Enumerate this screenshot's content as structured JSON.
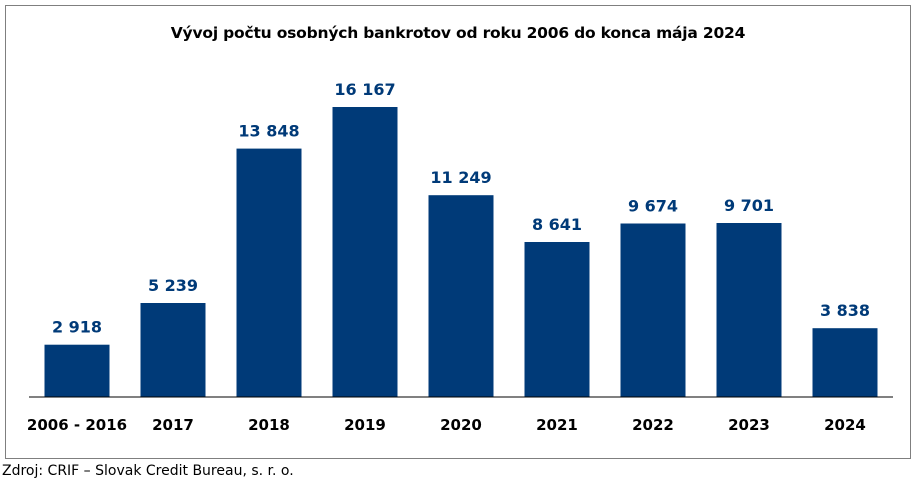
{
  "chart_data": {
    "type": "bar",
    "title": "Vývoj počtu osobných bankrotov od roku 2006 do konca mája 2024",
    "xlabel": "",
    "ylabel": "",
    "categories": [
      "2006 - 2016",
      "2017",
      "2018",
      "2019",
      "2020",
      "2021",
      "2022",
      "2023",
      "2024"
    ],
    "values": [
      2918,
      5239,
      13848,
      16167,
      11249,
      8641,
      9674,
      9701,
      3838
    ],
    "value_labels": [
      "2 918",
      "5 239",
      "13 848",
      "16 167",
      "11 249",
      "8 641",
      "9 674",
      "9 701",
      "3 838"
    ],
    "ylim": [
      0,
      16167
    ],
    "grid": false,
    "legend": "none",
    "bar_color": "#003a78",
    "label_color": "#003a78"
  },
  "source": "Zdroj: CRIF – Slovak Credit Bureau, s. r. o."
}
